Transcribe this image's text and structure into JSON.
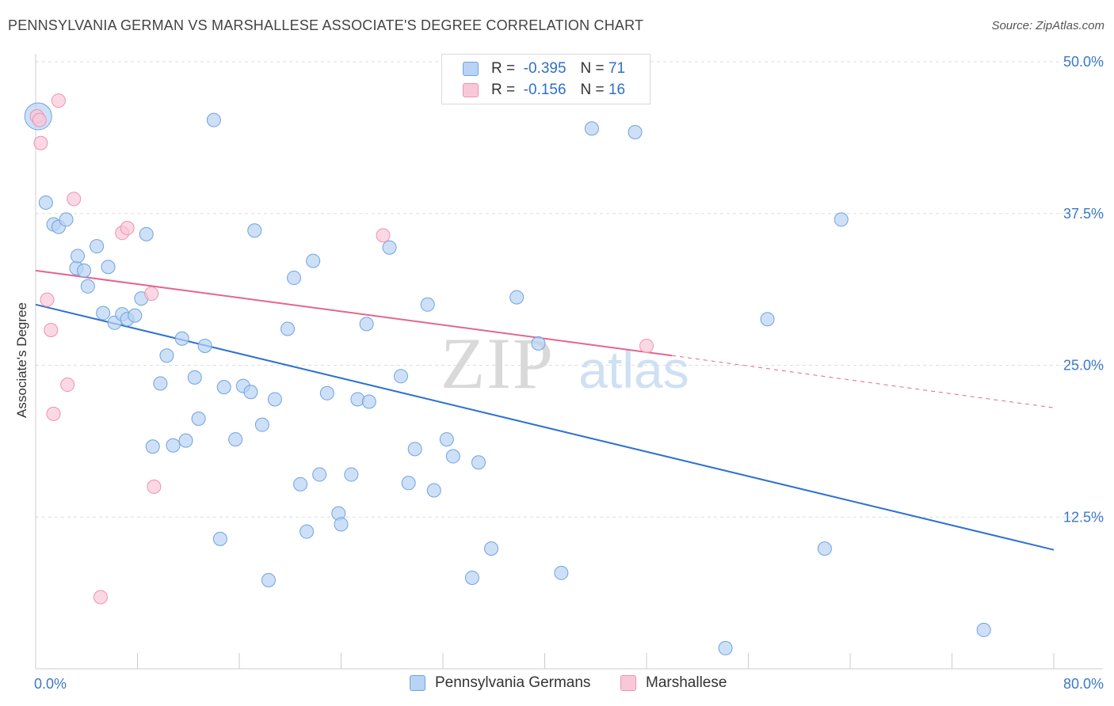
{
  "title": "PENNSYLVANIA GERMAN VS MARSHALLESE ASSOCIATE'S DEGREE CORRELATION CHART",
  "source": "Source: ZipAtlas.com",
  "watermark": {
    "zip": "ZIP",
    "atlas": "atlas"
  },
  "legend": {
    "rows": [
      {
        "r_label": "R =",
        "r_value": "-0.395",
        "n_label": "N =",
        "n_value": "71"
      },
      {
        "r_label": "R =",
        "r_value": "-0.156",
        "n_label": "N =",
        "n_value": "16"
      }
    ]
  },
  "colors": {
    "blue_fill": "#b8d3f3",
    "blue_stroke": "#6fa3e0",
    "blue_line": "#2f72d0",
    "pink_fill": "#f9c8d8",
    "pink_stroke": "#ec93b1",
    "pink_line": "#e26690",
    "axis_label": "#3b78c9",
    "grid": "#dddddd"
  },
  "chart_data": {
    "type": "scatter",
    "title": "PENNSYLVANIA GERMAN VS MARSHALLESE ASSOCIATE'S DEGREE CORRELATION CHART",
    "xlabel": "",
    "ylabel": "Associate's Degree",
    "xlim": [
      0,
      80
    ],
    "ylim": [
      0,
      50
    ],
    "x_tick_labels": [
      "0.0%",
      "80.0%"
    ],
    "y_ticks": [
      12.5,
      25.0,
      37.5,
      50.0
    ],
    "y_tick_labels": [
      "12.5%",
      "25.0%",
      "37.5%",
      "50.0%"
    ],
    "series": [
      {
        "name": "Pennsylvania Germans",
        "r": -0.395,
        "n": 71,
        "trend": {
          "x": [
            0,
            80
          ],
          "y": [
            30.0,
            9.8
          ]
        },
        "points": [
          [
            0.2,
            45.5
          ],
          [
            0.8,
            38.4
          ],
          [
            1.4,
            36.6
          ],
          [
            1.8,
            36.4
          ],
          [
            2.4,
            37.0
          ],
          [
            3.2,
            33.0
          ],
          [
            3.3,
            34.0
          ],
          [
            3.8,
            32.8
          ],
          [
            4.1,
            31.5
          ],
          [
            4.8,
            34.8
          ],
          [
            5.3,
            29.3
          ],
          [
            5.7,
            33.1
          ],
          [
            6.2,
            28.5
          ],
          [
            6.8,
            29.2
          ],
          [
            7.2,
            28.8
          ],
          [
            7.8,
            29.1
          ],
          [
            8.3,
            30.5
          ],
          [
            8.7,
            35.8
          ],
          [
            9.2,
            18.3
          ],
          [
            9.8,
            23.5
          ],
          [
            10.3,
            25.8
          ],
          [
            10.8,
            18.4
          ],
          [
            11.5,
            27.2
          ],
          [
            11.8,
            18.8
          ],
          [
            12.5,
            24.0
          ],
          [
            12.8,
            20.6
          ],
          [
            13.3,
            26.6
          ],
          [
            14.0,
            45.2
          ],
          [
            14.5,
            10.7
          ],
          [
            14.8,
            23.2
          ],
          [
            15.7,
            18.9
          ],
          [
            16.3,
            23.3
          ],
          [
            16.9,
            22.8
          ],
          [
            17.2,
            36.1
          ],
          [
            17.8,
            20.1
          ],
          [
            18.3,
            7.3
          ],
          [
            18.8,
            22.2
          ],
          [
            19.8,
            28.0
          ],
          [
            20.3,
            32.2
          ],
          [
            20.8,
            15.2
          ],
          [
            21.3,
            11.3
          ],
          [
            21.8,
            33.6
          ],
          [
            22.3,
            16.0
          ],
          [
            22.9,
            22.7
          ],
          [
            23.8,
            12.8
          ],
          [
            24.0,
            11.9
          ],
          [
            24.8,
            16.0
          ],
          [
            25.3,
            22.2
          ],
          [
            26.0,
            28.4
          ],
          [
            26.2,
            22.0
          ],
          [
            27.8,
            34.7
          ],
          [
            28.7,
            24.1
          ],
          [
            29.3,
            15.3
          ],
          [
            29.8,
            18.1
          ],
          [
            30.8,
            30.0
          ],
          [
            31.3,
            14.7
          ],
          [
            32.3,
            18.9
          ],
          [
            32.8,
            17.5
          ],
          [
            34.3,
            7.5
          ],
          [
            34.8,
            17.0
          ],
          [
            35.8,
            9.9
          ],
          [
            37.8,
            30.6
          ],
          [
            39.5,
            26.8
          ],
          [
            41.3,
            7.9
          ],
          [
            43.7,
            44.5
          ],
          [
            47.1,
            44.2
          ],
          [
            54.2,
            1.7
          ],
          [
            57.5,
            28.8
          ],
          [
            62.0,
            9.9
          ],
          [
            63.3,
            37.0
          ],
          [
            74.5,
            3.2
          ]
        ]
      },
      {
        "name": "Marshallese",
        "r": -0.156,
        "n": 16,
        "trend": {
          "x": [
            0,
            50
          ],
          "y": [
            32.8,
            25.8
          ]
        },
        "trend_dashed": {
          "x": [
            50,
            80
          ],
          "y": [
            25.8,
            21.5
          ]
        },
        "points": [
          [
            0.1,
            45.5
          ],
          [
            0.3,
            45.2
          ],
          [
            0.4,
            43.3
          ],
          [
            0.9,
            30.4
          ],
          [
            1.2,
            27.9
          ],
          [
            1.4,
            21.0
          ],
          [
            1.8,
            46.8
          ],
          [
            2.5,
            23.4
          ],
          [
            3.0,
            38.7
          ],
          [
            5.1,
            5.9
          ],
          [
            6.8,
            35.9
          ],
          [
            7.2,
            36.3
          ],
          [
            9.1,
            30.9
          ],
          [
            9.3,
            15.0
          ],
          [
            27.3,
            35.7
          ],
          [
            48.0,
            26.6
          ]
        ]
      }
    ]
  },
  "bottom_legend": [
    {
      "label": "Pennsylvania Germans"
    },
    {
      "label": "Marshallese"
    }
  ]
}
